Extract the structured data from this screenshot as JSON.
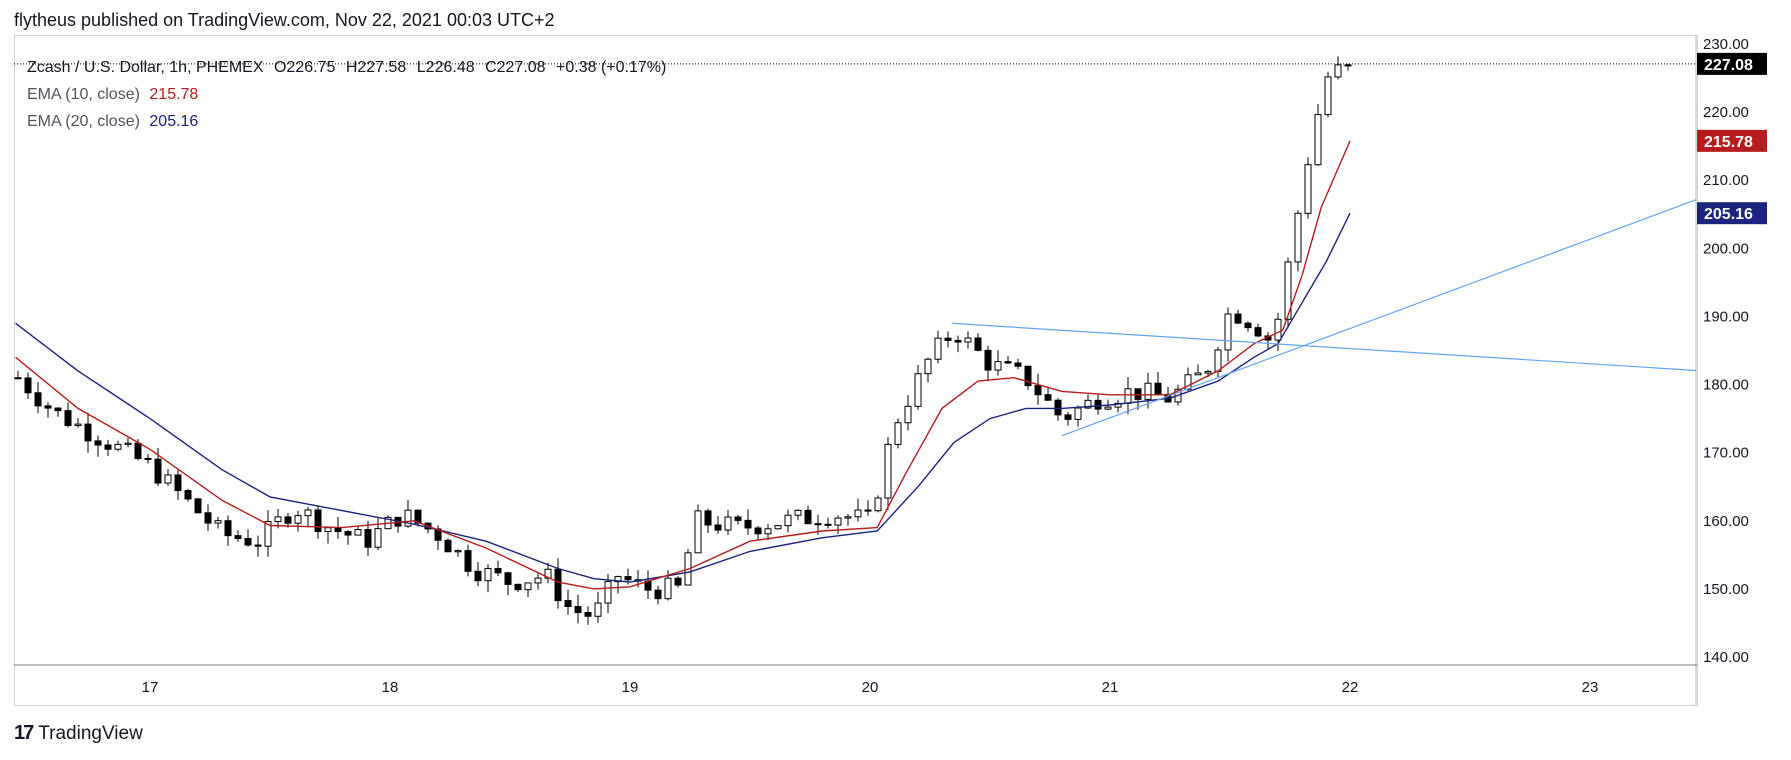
{
  "header": {
    "publisher": "flytheus published on TradingView.com, Nov 22, 2021 00:03 UTC+2"
  },
  "legend": {
    "symbol": "Zcash / U.S. Dollar, 1h, PHEMEX",
    "open": "O226.75",
    "high": "H227.58",
    "low": "L226.48",
    "close": "C227.08",
    "change": "+0.38 (+0.17%)",
    "ema10": {
      "label": "EMA (10, close)",
      "value": "215.78",
      "color": "#b71c1c"
    },
    "ema20": {
      "label": "EMA (20, close)",
      "value": "205.16",
      "color": "#1a237e"
    }
  },
  "price_tag": {
    "value": "227.08"
  },
  "footer": {
    "brand": "TradingView",
    "logo": "17"
  },
  "chart_data": {
    "type": "candlestick",
    "timeframe": "1h",
    "xlabel": "",
    "ylabel": "",
    "ylim": [
      140,
      230
    ],
    "y_ticks": [
      "140.00",
      "150.00",
      "160.00",
      "170.00",
      "180.00",
      "190.00",
      "200.00",
      "210.00",
      "220.00",
      "230.00"
    ],
    "x_ticks": [
      {
        "label": "17",
        "day": 1
      },
      {
        "label": "18",
        "day": 2
      },
      {
        "label": "19",
        "day": 3
      },
      {
        "label": "20",
        "day": 4
      },
      {
        "label": "21",
        "day": 5
      },
      {
        "label": "22",
        "day": 6
      },
      {
        "label": "23",
        "day": 7
      }
    ],
    "x_range_days": [
      0.44,
      7.47
    ],
    "price_keypoints": [
      [
        0.45,
        181
      ],
      [
        0.6,
        176
      ],
      [
        0.8,
        172
      ],
      [
        1.0,
        168
      ],
      [
        1.15,
        163
      ],
      [
        1.3,
        158
      ],
      [
        1.45,
        157
      ],
      [
        1.6,
        162
      ],
      [
        1.75,
        159
      ],
      [
        1.9,
        157
      ],
      [
        2.05,
        161
      ],
      [
        2.2,
        158
      ],
      [
        2.35,
        153
      ],
      [
        2.5,
        151
      ],
      [
        2.65,
        152
      ],
      [
        2.75,
        147
      ],
      [
        2.85,
        146
      ],
      [
        2.95,
        152
      ],
      [
        3.05,
        150
      ],
      [
        3.2,
        150
      ],
      [
        3.28,
        160
      ],
      [
        3.45,
        159
      ],
      [
        3.65,
        160
      ],
      [
        3.85,
        161
      ],
      [
        4.0,
        160
      ],
      [
        4.1,
        174
      ],
      [
        4.25,
        184
      ],
      [
        4.35,
        188
      ],
      [
        4.5,
        183
      ],
      [
        4.65,
        181
      ],
      [
        4.8,
        175
      ],
      [
        4.95,
        178
      ],
      [
        5.1,
        179
      ],
      [
        5.25,
        178
      ],
      [
        5.4,
        182
      ],
      [
        5.5,
        191
      ],
      [
        5.6,
        189
      ],
      [
        5.68,
        186
      ],
      [
        5.75,
        199
      ],
      [
        5.83,
        214
      ],
      [
        5.9,
        225
      ],
      [
        6.0,
        227.08
      ]
    ],
    "ema10_keypoints": [
      [
        0.44,
        184
      ],
      [
        0.7,
        176.5
      ],
      [
        1.0,
        170.5
      ],
      [
        1.3,
        163
      ],
      [
        1.5,
        159.3
      ],
      [
        1.8,
        159
      ],
      [
        2.1,
        160
      ],
      [
        2.4,
        156
      ],
      [
        2.7,
        151
      ],
      [
        2.85,
        150
      ],
      [
        3.0,
        150.3
      ],
      [
        3.25,
        153
      ],
      [
        3.5,
        157
      ],
      [
        3.8,
        158.5
      ],
      [
        4.03,
        159
      ],
      [
        4.15,
        167
      ],
      [
        4.3,
        176.5
      ],
      [
        4.45,
        180.5
      ],
      [
        4.6,
        181
      ],
      [
        4.8,
        179
      ],
      [
        5.0,
        178.5
      ],
      [
        5.25,
        178.5
      ],
      [
        5.45,
        182
      ],
      [
        5.6,
        186
      ],
      [
        5.72,
        188
      ],
      [
        5.8,
        196
      ],
      [
        5.88,
        206
      ],
      [
        6.0,
        215.78
      ]
    ],
    "ema20_keypoints": [
      [
        0.44,
        189
      ],
      [
        0.7,
        182
      ],
      [
        1.0,
        175
      ],
      [
        1.3,
        167.5
      ],
      [
        1.5,
        163.5
      ],
      [
        1.8,
        161.5
      ],
      [
        2.1,
        159.5
      ],
      [
        2.4,
        157
      ],
      [
        2.7,
        153
      ],
      [
        2.85,
        151.5
      ],
      [
        3.0,
        151
      ],
      [
        3.25,
        152.5
      ],
      [
        3.5,
        155.5
      ],
      [
        3.8,
        157.5
      ],
      [
        4.03,
        158.5
      ],
      [
        4.2,
        165
      ],
      [
        4.35,
        171.5
      ],
      [
        4.5,
        175
      ],
      [
        4.65,
        176.5
      ],
      [
        4.8,
        176.5
      ],
      [
        5.0,
        177
      ],
      [
        5.25,
        178
      ],
      [
        5.45,
        180.5
      ],
      [
        5.6,
        184
      ],
      [
        5.7,
        186
      ],
      [
        5.8,
        192
      ],
      [
        5.9,
        198
      ],
      [
        6.0,
        205.16
      ]
    ],
    "trendlines": [
      {
        "name": "resistance",
        "from": {
          "day": 4.34,
          "price": 189
        },
        "to": {
          "day": 7.47,
          "price": 182
        }
      },
      {
        "name": "support",
        "from": {
          "day": 4.8,
          "price": 172.5
        },
        "to": {
          "day": 7.47,
          "price": 207.5
        }
      }
    ]
  }
}
